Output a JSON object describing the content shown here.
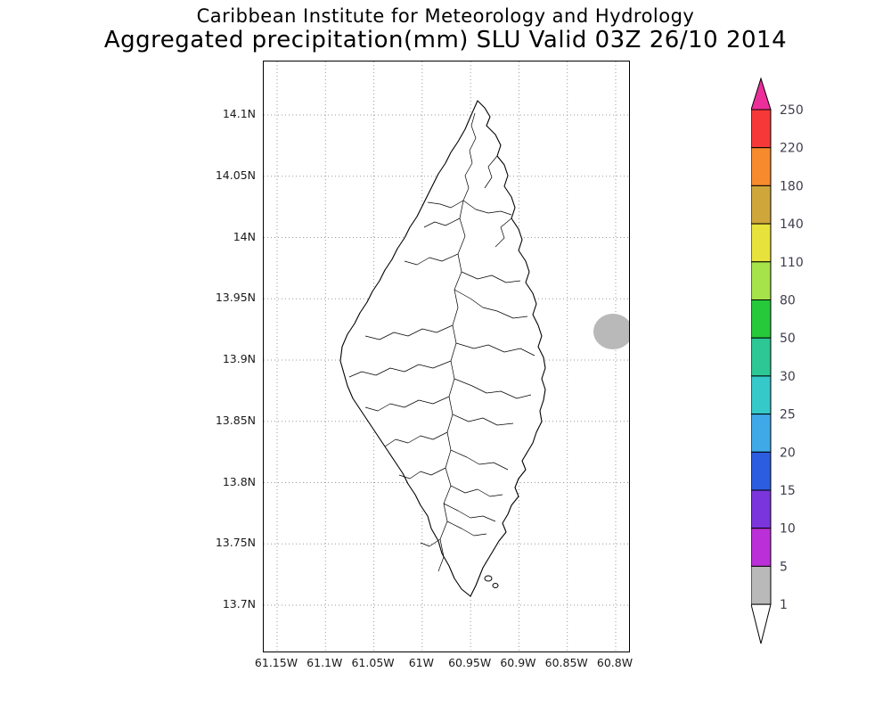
{
  "title": {
    "line1": "Caribbean Institute for Meteorology and Hydrology",
    "line2": "Aggregated precipitation(mm) SLU Valid 03Z 26/10 2014"
  },
  "map": {
    "y_ticks": [
      "14.1N",
      "14.05N",
      "14N",
      "13.95N",
      "13.9N",
      "13.85N",
      "13.8N",
      "13.75N",
      "13.7N"
    ],
    "x_ticks": [
      "61.15W",
      "61.1W",
      "61.05W",
      "61W",
      "60.95W",
      "60.9W",
      "60.85W",
      "60.8W"
    ],
    "feature": "Saint Lucia coastline with river network",
    "shaded_feature": {
      "value_bin": "1-5 mm",
      "color": "#b9b9b9"
    }
  },
  "colorbar": {
    "labels": [
      "250",
      "220",
      "180",
      "140",
      "110",
      "80",
      "50",
      "30",
      "25",
      "20",
      "15",
      "10",
      "5",
      "1"
    ],
    "segment_colors_top_to_bottom": [
      "#f63838",
      "#f78a2d",
      "#cfa63a",
      "#e8e23c",
      "#a6e34a",
      "#26c93a",
      "#2cc795",
      "#35c9c9",
      "#3fa9e8",
      "#2c5de0",
      "#7a35dc",
      "#bb2fd8",
      "#b9b9b9"
    ],
    "arrow_top_color": "#ec2e9b",
    "arrow_bottom_color": "#ffffff"
  },
  "chart_data": {
    "type": "map",
    "variable": "Aggregated precipitation (mm)",
    "region": "SLU (Saint Lucia)",
    "valid": "03Z 26/10 2014",
    "lat_range": [
      13.7,
      14.1
    ],
    "lon_range": [
      -61.15,
      -60.8
    ],
    "grid": "dotted",
    "color_scale_thresholds": [
      1,
      5,
      10,
      15,
      20,
      25,
      30,
      50,
      80,
      110,
      140,
      180,
      220,
      250
    ],
    "shaded_feature": {
      "approx_lat": 13.92,
      "approx_lon": -60.81,
      "value_bin": "1-5 mm"
    }
  }
}
